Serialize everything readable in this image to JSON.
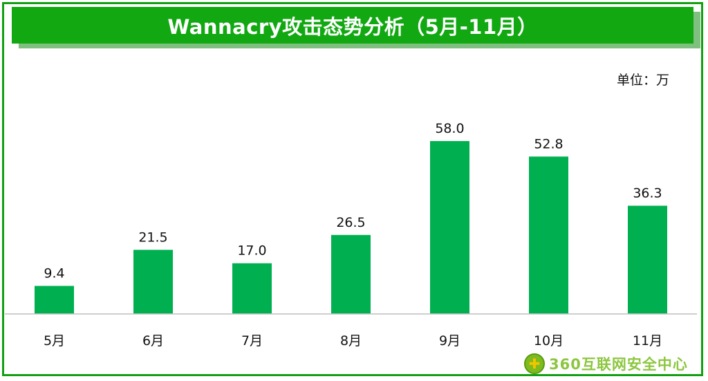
{
  "header": {
    "title": "Wannacry攻击态势分析（5月-11月）"
  },
  "unit_label": "单位：万",
  "logo": {
    "icon": "shield-plus-icon",
    "text": "360互联网安全中心"
  },
  "colors": {
    "bar": "#00b050",
    "title_bg": "#12a812",
    "frame": "#12a012"
  },
  "chart_data": {
    "type": "bar",
    "title": "Wannacry攻击态势分析（5月-11月）",
    "categories": [
      "5月",
      "6月",
      "7月",
      "8月",
      "9月",
      "10月",
      "11月"
    ],
    "values": [
      9.4,
      21.5,
      17.0,
      26.5,
      58.0,
      52.8,
      36.3
    ],
    "labels": [
      "9.4",
      "21.5",
      "17.0",
      "26.5",
      "58.0",
      "52.8",
      "36.3"
    ],
    "xlabel": "",
    "ylabel": "",
    "unit": "万",
    "ylim": [
      0,
      58
    ],
    "grid": false,
    "legend": "none"
  }
}
